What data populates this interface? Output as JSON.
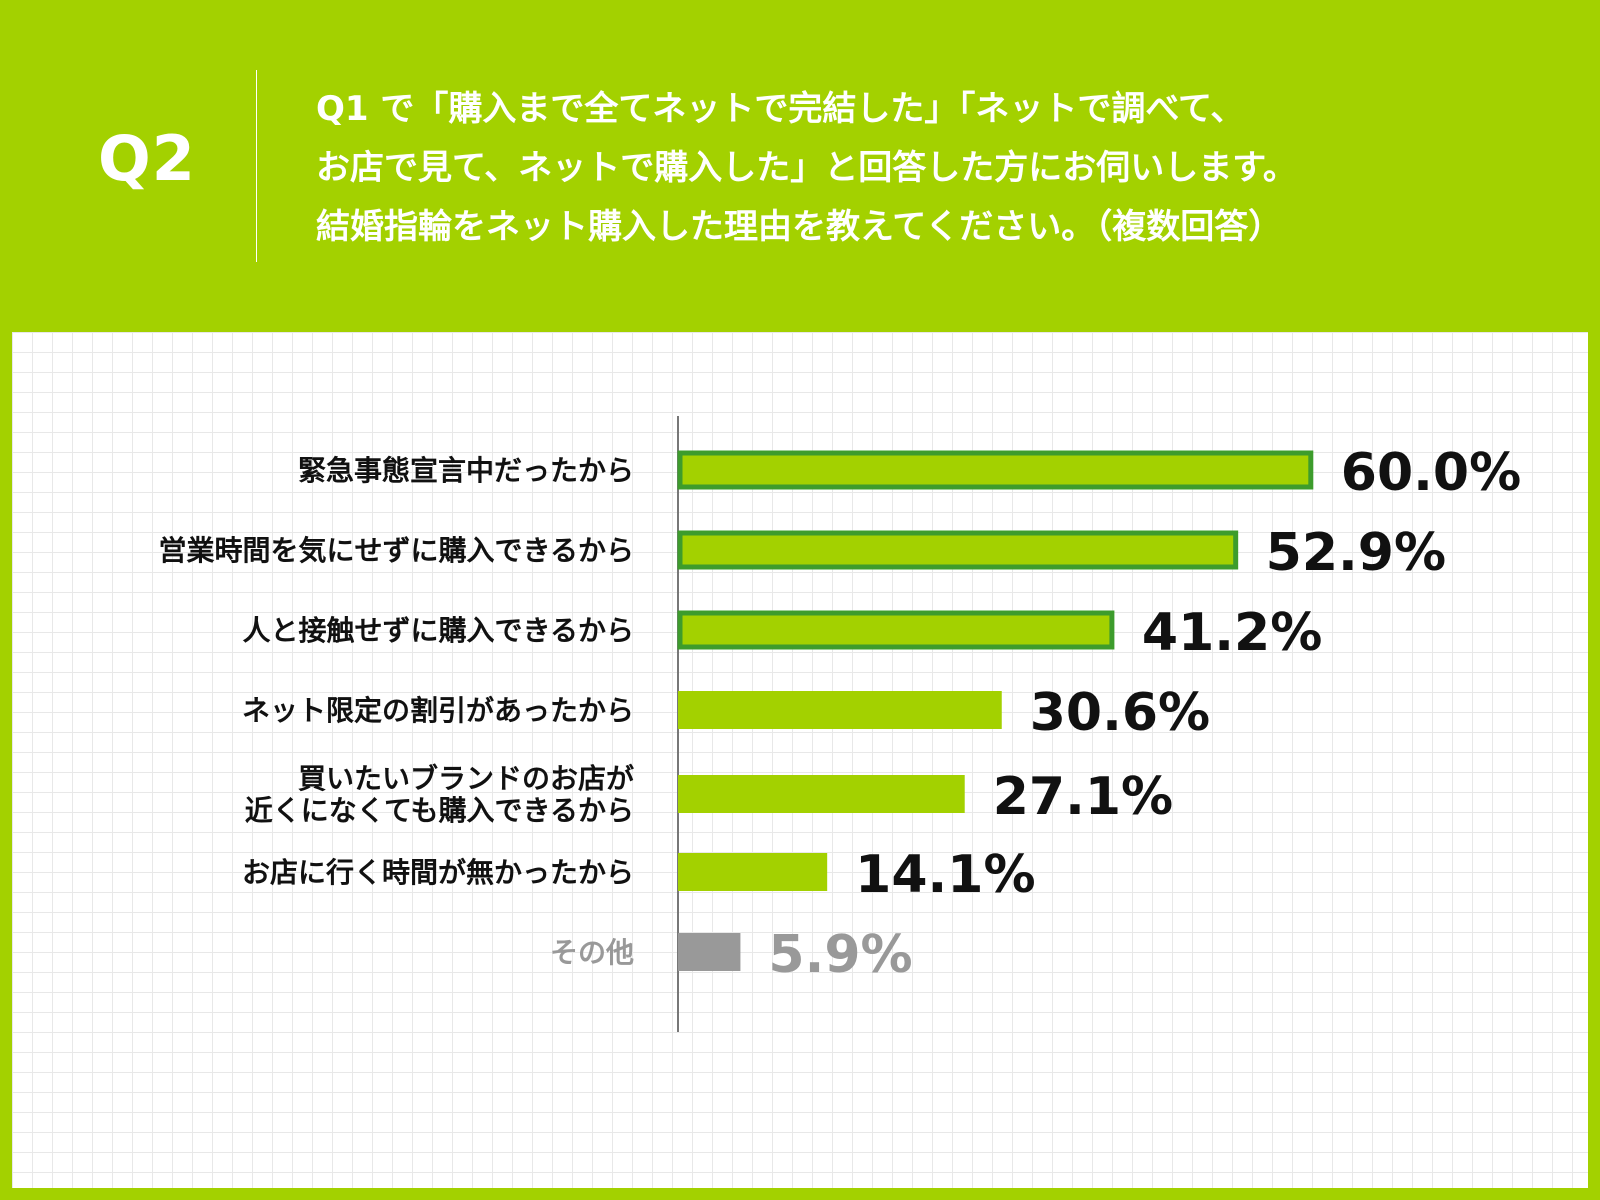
{
  "header": {
    "q_label": "Q2",
    "question_lines": [
      "Q1 で「購入まで全てネットで完結した」「ネットで調べて、",
      "お店で見て、ネットで購入した」と回答した方にお伺いします。",
      "結婚指輪をネット購入した理由を教えてください。（複数回答）"
    ]
  },
  "colors": {
    "background": "#a3d100",
    "bar_fill": "#a3d100",
    "bar_highlight_border": "#3d9c2c",
    "bar_other": "#999999",
    "label_text": "#111111",
    "other_text": "#999999"
  },
  "chart_data": {
    "type": "bar",
    "orientation": "horizontal",
    "categories": [
      [
        "緊急事態宣言中だったから"
      ],
      [
        "営業時間を気にせずに購入できるから"
      ],
      [
        "人と接触せずに購入できるから"
      ],
      [
        "ネット限定の割引があったから"
      ],
      [
        "買いたいブランドのお店が",
        "近くになくても購入できるから"
      ],
      [
        "お店に行く時間が無かったから"
      ],
      [
        "その他"
      ]
    ],
    "values": [
      60.0,
      52.9,
      41.2,
      30.6,
      27.1,
      14.1,
      5.9
    ],
    "value_labels": [
      "60.0%",
      "52.9%",
      "41.2%",
      "30.6%",
      "27.1%",
      "14.1%",
      "5.9%"
    ],
    "highlighted": [
      true,
      true,
      true,
      false,
      false,
      false,
      false
    ],
    "muted": [
      false,
      false,
      false,
      false,
      false,
      false,
      true
    ],
    "unit": "%",
    "xlim": [
      0,
      100
    ],
    "grid": true,
    "legend": "none"
  }
}
